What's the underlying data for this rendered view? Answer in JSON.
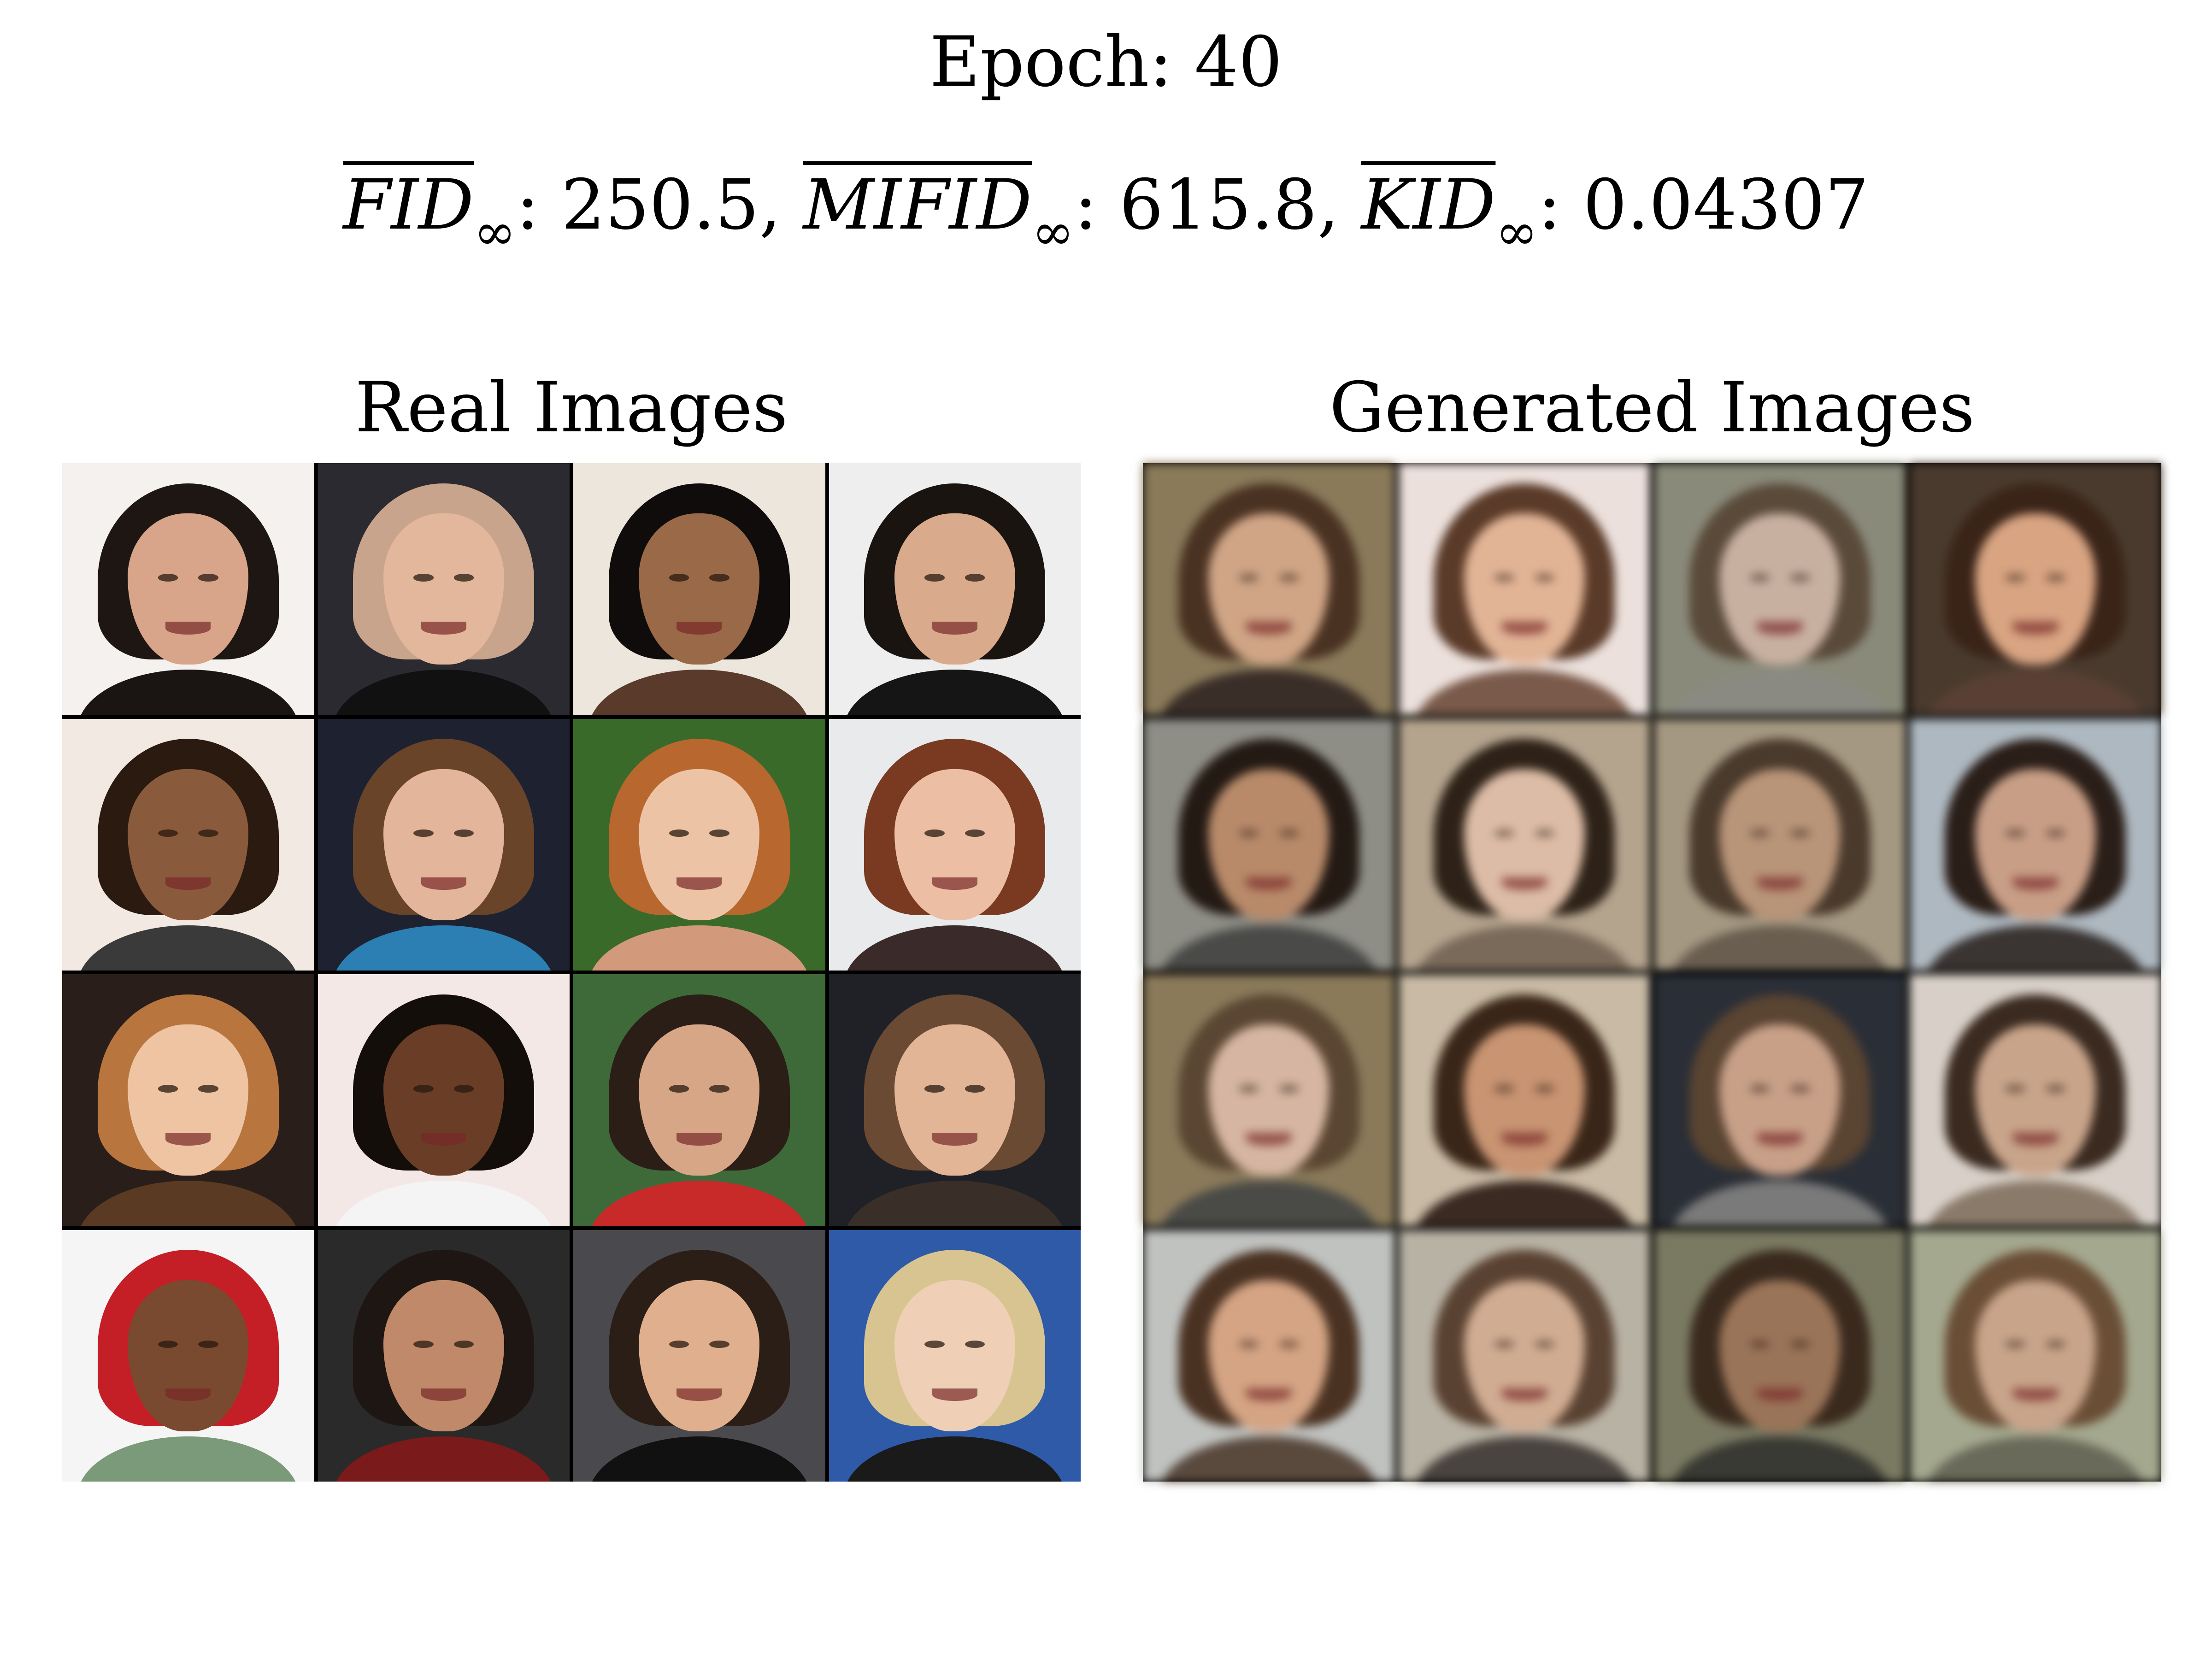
{
  "header": {
    "epoch_label": "Epoch:",
    "epoch_value": "40"
  },
  "metrics": {
    "fid_name": "FID",
    "fid_value": ": 250.5,",
    "mifid_name": "MIFID",
    "mifid_value": ": 615.8,",
    "kid_name": "KID",
    "kid_value": ": 0.04307",
    "subscript": "∞"
  },
  "panels": {
    "real_title": "Real Images",
    "generated_title": "Generated Images"
  },
  "palette": {
    "grid_line": "#000000",
    "background": "#ffffff"
  }
}
